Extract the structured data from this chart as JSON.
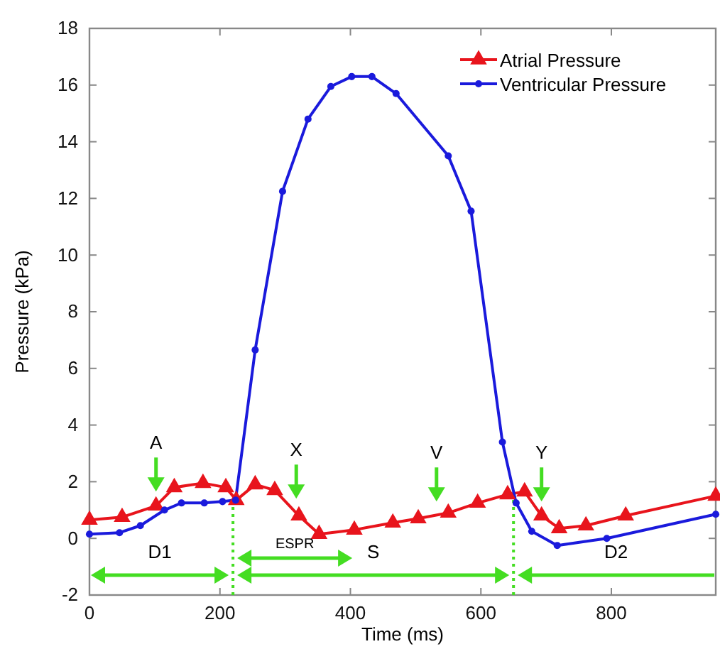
{
  "chart_data": {
    "type": "line",
    "xlabel": "Time (ms)",
    "ylabel": "Pressure (kPa)",
    "xlim": [
      0,
      960
    ],
    "ylim": [
      -2,
      18
    ],
    "xticks": [
      0,
      200,
      400,
      600,
      800
    ],
    "yticks": [
      -2,
      0,
      2,
      4,
      6,
      8,
      10,
      12,
      14,
      16,
      18
    ],
    "grid": false,
    "legend": "top right",
    "line_style": "solid",
    "series": [
      {
        "name": "Atrial Pressure",
        "color": "#e8141c",
        "marker": "triangle",
        "x": [
          0,
          50,
          102,
          130,
          174,
          209,
          225,
          254,
          284,
          321,
          352,
          406,
          465,
          504,
          550,
          595,
          641,
          667,
          693,
          720,
          761,
          822,
          960
        ],
        "values": [
          0.65,
          0.75,
          1.15,
          1.8,
          1.95,
          1.8,
          1.35,
          1.9,
          1.7,
          0.8,
          0.15,
          0.3,
          0.55,
          0.7,
          0.9,
          1.25,
          1.55,
          1.65,
          0.8,
          0.35,
          0.45,
          0.8,
          1.5
        ]
      },
      {
        "name": "Ventricular Pressure",
        "color": "#1a1adc",
        "marker": "circle",
        "x": [
          0,
          46,
          78,
          115,
          141,
          176,
          204,
          224,
          254,
          296,
          335,
          370,
          402,
          433,
          470,
          550,
          585,
          633,
          654,
          678,
          717,
          793,
          960
        ],
        "values": [
          0.15,
          0.2,
          0.45,
          1.0,
          1.25,
          1.25,
          1.3,
          1.35,
          6.65,
          12.25,
          14.8,
          15.95,
          16.3,
          16.3,
          15.7,
          13.5,
          11.55,
          3.4,
          1.25,
          0.25,
          -0.25,
          0.0,
          0.85
        ]
      }
    ],
    "ref_lines": [
      {
        "axis": "x",
        "value": 220,
        "color": "#44dd22",
        "line_style": "dotted"
      },
      {
        "axis": "x",
        "value": 650,
        "color": "#44dd22",
        "line_style": "dotted"
      }
    ],
    "annotations": [
      "D1",
      "S",
      "D2",
      "ESPR",
      {
        "text": "A",
        "x": 102,
        "y": 1.15
      },
      {
        "text": "X",
        "x": 317,
        "y": 0.9
      },
      {
        "text": "V",
        "x": 532,
        "y": 0.8
      },
      {
        "text": "Y",
        "x": 693,
        "y": 0.8
      }
    ]
  }
}
